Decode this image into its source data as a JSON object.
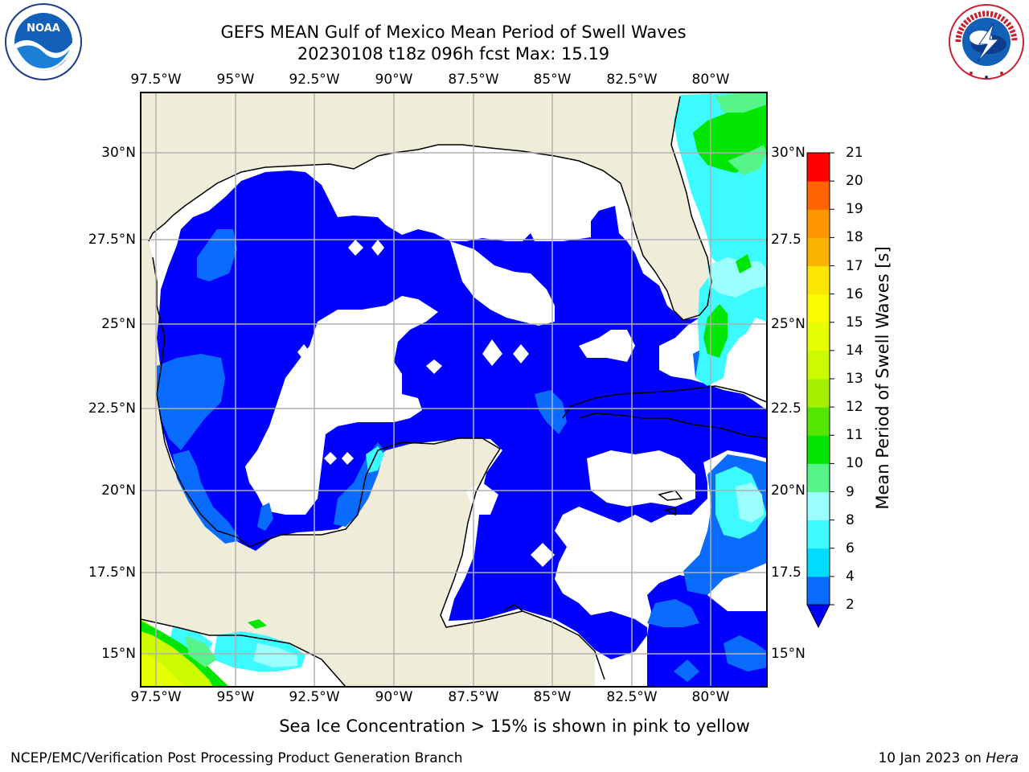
{
  "header": {
    "title_line1": "GEFS MEAN Gulf of Mexico Mean Period of Swell Waves",
    "title_line2": "20230108 t18z 096h fcst   Max: 15.19"
  },
  "map": {
    "lon_ticks": [
      "97.5°W",
      "95°W",
      "92.5°W",
      "90°W",
      "87.5°W",
      "85°W",
      "82.5°W",
      "80°W"
    ],
    "lat_ticks_left": [
      "30°N",
      "27.5°N",
      "25°N",
      "22.5°N",
      "20°N",
      "17.5°N",
      "15°N"
    ],
    "lat_ticks_right": [
      "30°N",
      "27.5",
      "25°N",
      "22.5",
      "20°N",
      "17.5",
      "15°N"
    ],
    "colors": {
      "land": "#efedda",
      "ocean_low": "#0000ff",
      "grid": "#b0b0b0"
    }
  },
  "colorbar": {
    "label": "Mean Period of Swell Waves [s]",
    "ticks": [
      "2",
      "4",
      "6",
      "8",
      "9",
      "10",
      "11",
      "12",
      "13",
      "14",
      "15",
      "16",
      "17",
      "18",
      "19",
      "20",
      "21"
    ],
    "colors": [
      "#0a6cff",
      "#00dcff",
      "#3cfaff",
      "#9bffff",
      "#55f58a",
      "#00e600",
      "#54e600",
      "#a4f000",
      "#ccfa00",
      "#e6ff00",
      "#fafa00",
      "#fae600",
      "#fab400",
      "#ff9600",
      "#ff6400",
      "#ff3200",
      "#ff0000"
    ],
    "extend_color": "#0000ff"
  },
  "notes": {
    "sea_ice": "Sea Ice Concentration > 15% is shown in pink to yellow"
  },
  "footer": {
    "left": "NCEP/EMC/Verification Post Processing Product Generation Branch",
    "date": "10 Jan 2023 on",
    "machine": "Hera"
  },
  "logos": {
    "left": "NOAA",
    "right": "NATIONAL WEATHER SERVICE"
  }
}
